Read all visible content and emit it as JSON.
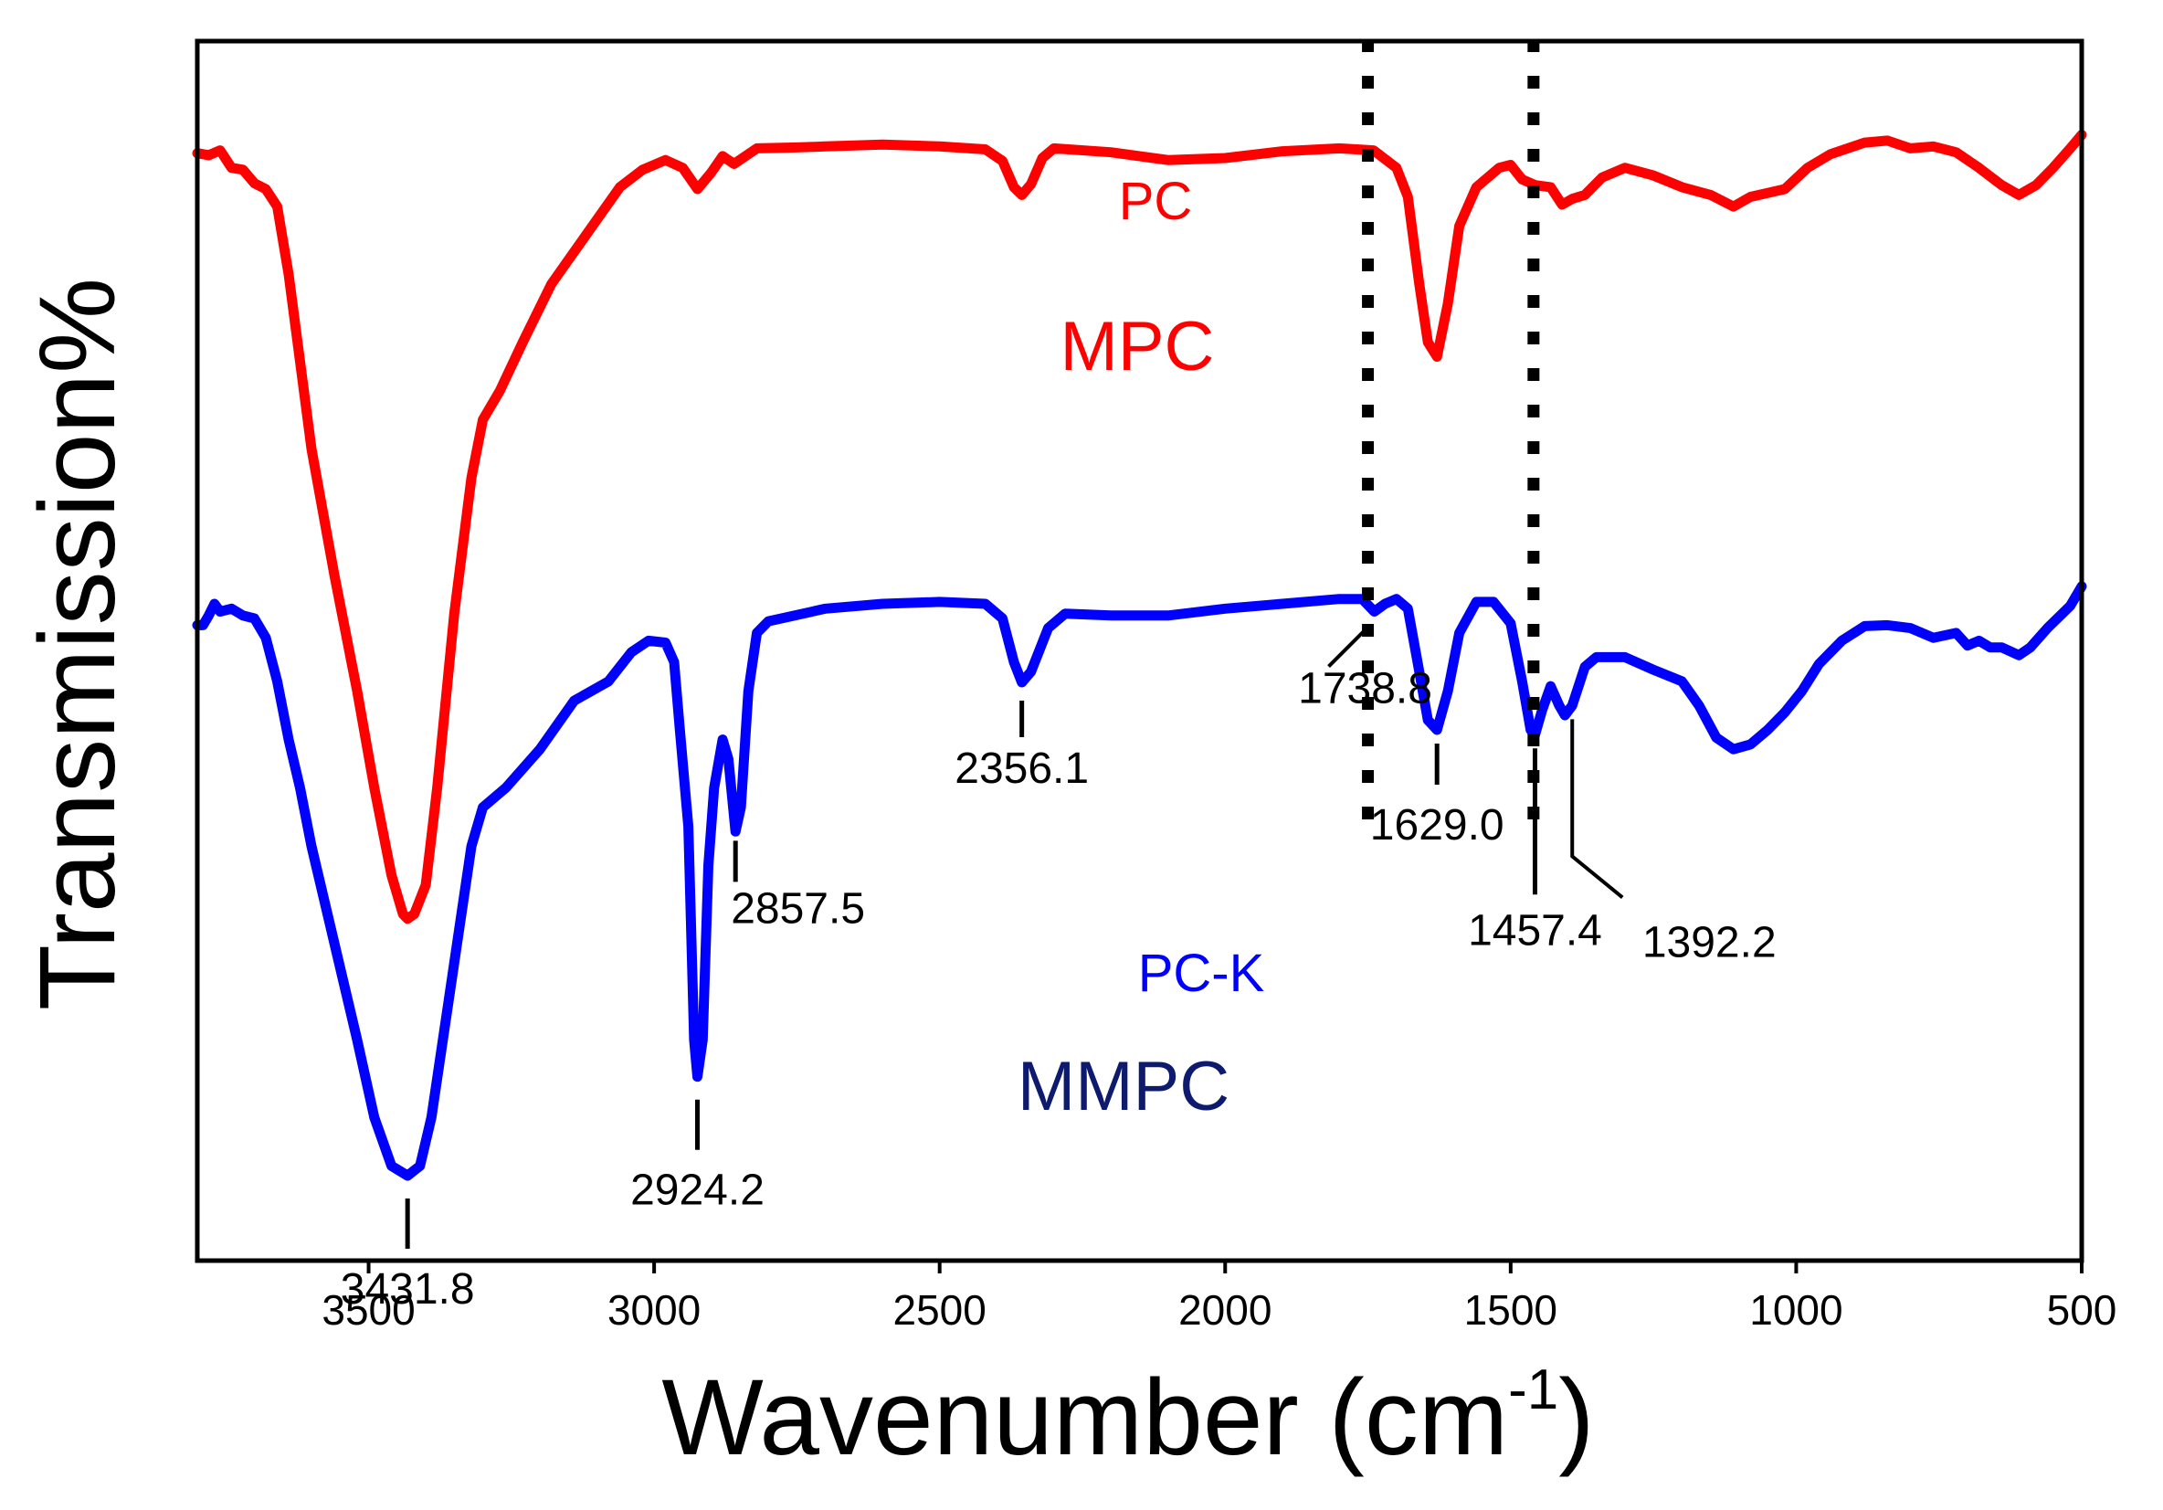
{
  "chart_data": {
    "type": "line",
    "title": "",
    "xlabel": "Wavenumber (cm",
    "xlabel_sup": "-1",
    "xlabel_close": ")",
    "ylabel": "Transmission%",
    "xlim": [
      3800,
      500
    ],
    "x_reversed": true,
    "yaxis_ticks": false,
    "x_ticks": [
      3500,
      3000,
      2500,
      2000,
      1500,
      1000,
      500
    ],
    "x_tick_labels": [
      "3500",
      "3000",
      "2500",
      "2000",
      "1500",
      "1000",
      "500"
    ],
    "series": [
      {
        "name": "MPC",
        "legend_labels": [
          "PC",
          "MPC"
        ],
        "legend_colors": [
          "#ff0000",
          "#ff0000"
        ],
        "color": "#ff0000",
        "points": [
          [
            3800,
            0.045
          ],
          [
            3780,
            0.047
          ],
          [
            3760,
            0.042
          ],
          [
            3740,
            0.06
          ],
          [
            3720,
            0.062
          ],
          [
            3700,
            0.076
          ],
          [
            3680,
            0.082
          ],
          [
            3660,
            0.1
          ],
          [
            3640,
            0.17
          ],
          [
            3620,
            0.26
          ],
          [
            3600,
            0.35
          ],
          [
            3560,
            0.48
          ],
          [
            3520,
            0.6
          ],
          [
            3490,
            0.7
          ],
          [
            3460,
            0.79
          ],
          [
            3440,
            0.83
          ],
          [
            3431.8,
            0.835
          ],
          [
            3420,
            0.83
          ],
          [
            3400,
            0.8
          ],
          [
            3380,
            0.7
          ],
          [
            3350,
            0.52
          ],
          [
            3320,
            0.38
          ],
          [
            3300,
            0.32
          ],
          [
            3270,
            0.29
          ],
          [
            3230,
            0.24
          ],
          [
            3180,
            0.18
          ],
          [
            3120,
            0.13
          ],
          [
            3060,
            0.08
          ],
          [
            3020,
            0.062
          ],
          [
            2980,
            0.052
          ],
          [
            2950,
            0.06
          ],
          [
            2924,
            0.082
          ],
          [
            2900,
            0.065
          ],
          [
            2880,
            0.048
          ],
          [
            2860,
            0.056
          ],
          [
            2840,
            0.048
          ],
          [
            2820,
            0.04
          ],
          [
            2750,
            0.039
          ],
          [
            2700,
            0.038
          ],
          [
            2600,
            0.036
          ],
          [
            2500,
            0.038
          ],
          [
            2420,
            0.041
          ],
          [
            2390,
            0.053
          ],
          [
            2370,
            0.08
          ],
          [
            2356,
            0.088
          ],
          [
            2340,
            0.077
          ],
          [
            2320,
            0.05
          ],
          [
            2300,
            0.04
          ],
          [
            2200,
            0.044
          ],
          [
            2100,
            0.052
          ],
          [
            2000,
            0.05
          ],
          [
            1900,
            0.043
          ],
          [
            1800,
            0.04
          ],
          [
            1740,
            0.042
          ],
          [
            1700,
            0.06
          ],
          [
            1680,
            0.09
          ],
          [
            1660,
            0.18
          ],
          [
            1645,
            0.24
          ],
          [
            1629,
            0.255
          ],
          [
            1610,
            0.2
          ],
          [
            1590,
            0.12
          ],
          [
            1560,
            0.08
          ],
          [
            1520,
            0.06
          ],
          [
            1500,
            0.057
          ],
          [
            1480,
            0.072
          ],
          [
            1457,
            0.078
          ],
          [
            1430,
            0.08
          ],
          [
            1410,
            0.098
          ],
          [
            1392,
            0.092
          ],
          [
            1370,
            0.088
          ],
          [
            1340,
            0.07
          ],
          [
            1300,
            0.06
          ],
          [
            1250,
            0.068
          ],
          [
            1200,
            0.08
          ],
          [
            1150,
            0.088
          ],
          [
            1110,
            0.1
          ],
          [
            1080,
            0.09
          ],
          [
            1020,
            0.082
          ],
          [
            980,
            0.06
          ],
          [
            940,
            0.046
          ],
          [
            880,
            0.034
          ],
          [
            840,
            0.032
          ],
          [
            800,
            0.04
          ],
          [
            760,
            0.038
          ],
          [
            720,
            0.044
          ],
          [
            680,
            0.06
          ],
          [
            640,
            0.078
          ],
          [
            610,
            0.088
          ],
          [
            580,
            0.078
          ],
          [
            550,
            0.06
          ],
          [
            520,
            0.04
          ],
          [
            500,
            0.026
          ]
        ]
      },
      {
        "name": "MMPC",
        "legend_labels": [
          "PC-K",
          "MMPC"
        ],
        "legend_colors": [
          "#0000ff",
          "#0d1a6e"
        ],
        "color": "#0000ff",
        "points": [
          [
            3800,
            0.532
          ],
          [
            3790,
            0.532
          ],
          [
            3780,
            0.522
          ],
          [
            3770,
            0.51
          ],
          [
            3760,
            0.518
          ],
          [
            3740,
            0.515
          ],
          [
            3720,
            0.522
          ],
          [
            3700,
            0.525
          ],
          [
            3680,
            0.545
          ],
          [
            3660,
            0.59
          ],
          [
            3640,
            0.65
          ],
          [
            3620,
            0.7
          ],
          [
            3600,
            0.76
          ],
          [
            3560,
            0.86
          ],
          [
            3520,
            0.96
          ],
          [
            3490,
            1.04
          ],
          [
            3460,
            1.09
          ],
          [
            3431.8,
            1.1
          ],
          [
            3410,
            1.09
          ],
          [
            3390,
            1.04
          ],
          [
            3360,
            0.92
          ],
          [
            3320,
            0.76
          ],
          [
            3300,
            0.72
          ],
          [
            3260,
            0.7
          ],
          [
            3200,
            0.66
          ],
          [
            3140,
            0.61
          ],
          [
            3080,
            0.59
          ],
          [
            3040,
            0.56
          ],
          [
            3010,
            0.548
          ],
          [
            2980,
            0.55
          ],
          [
            2965,
            0.57
          ],
          [
            2955,
            0.64
          ],
          [
            2940,
            0.74
          ],
          [
            2930,
            0.96
          ],
          [
            2924.2,
            0.998
          ],
          [
            2915,
            0.96
          ],
          [
            2905,
            0.78
          ],
          [
            2895,
            0.7
          ],
          [
            2880,
            0.65
          ],
          [
            2870,
            0.67
          ],
          [
            2857.5,
            0.745
          ],
          [
            2848,
            0.72
          ],
          [
            2835,
            0.6
          ],
          [
            2820,
            0.54
          ],
          [
            2800,
            0.528
          ],
          [
            2700,
            0.515
          ],
          [
            2600,
            0.51
          ],
          [
            2500,
            0.508
          ],
          [
            2420,
            0.51
          ],
          [
            2390,
            0.525
          ],
          [
            2370,
            0.57
          ],
          [
            2356.1,
            0.591
          ],
          [
            2340,
            0.58
          ],
          [
            2310,
            0.535
          ],
          [
            2280,
            0.52
          ],
          [
            2200,
            0.522
          ],
          [
            2100,
            0.522
          ],
          [
            2000,
            0.515
          ],
          [
            1900,
            0.51
          ],
          [
            1800,
            0.505
          ],
          [
            1760,
            0.505
          ],
          [
            1738.8,
            0.518
          ],
          [
            1720,
            0.51
          ],
          [
            1700,
            0.505
          ],
          [
            1680,
            0.515
          ],
          [
            1660,
            0.58
          ],
          [
            1645,
            0.63
          ],
          [
            1629,
            0.64
          ],
          [
            1610,
            0.6
          ],
          [
            1590,
            0.54
          ],
          [
            1560,
            0.508
          ],
          [
            1530,
            0.508
          ],
          [
            1500,
            0.53
          ],
          [
            1480,
            0.59
          ],
          [
            1465,
            0.64
          ],
          [
            1457.4,
            0.645
          ],
          [
            1445,
            0.62
          ],
          [
            1430,
            0.595
          ],
          [
            1415,
            0.615
          ],
          [
            1405,
            0.625
          ],
          [
            1392.2,
            0.615
          ],
          [
            1370,
            0.575
          ],
          [
            1350,
            0.565
          ],
          [
            1300,
            0.565
          ],
          [
            1250,
            0.578
          ],
          [
            1200,
            0.59
          ],
          [
            1170,
            0.615
          ],
          [
            1140,
            0.648
          ],
          [
            1110,
            0.66
          ],
          [
            1080,
            0.655
          ],
          [
            1050,
            0.64
          ],
          [
            1020,
            0.622
          ],
          [
            990,
            0.6
          ],
          [
            960,
            0.572
          ],
          [
            920,
            0.548
          ],
          [
            880,
            0.533
          ],
          [
            840,
            0.532
          ],
          [
            800,
            0.535
          ],
          [
            760,
            0.545
          ],
          [
            720,
            0.54
          ],
          [
            700,
            0.553
          ],
          [
            680,
            0.548
          ],
          [
            660,
            0.555
          ],
          [
            640,
            0.555
          ],
          [
            610,
            0.563
          ],
          [
            590,
            0.555
          ],
          [
            560,
            0.535
          ],
          [
            520,
            0.512
          ],
          [
            500,
            0.492
          ]
        ]
      }
    ],
    "reference_lines": [
      1750,
      1460
    ],
    "peak_annotations": [
      {
        "label": "3431.8",
        "x": 3431.8
      },
      {
        "label": "2924.2",
        "x": 2924.2
      },
      {
        "label": "2857.5",
        "x": 2857.5
      },
      {
        "label": "2356.1",
        "x": 2356.1
      },
      {
        "label": "1738.8",
        "x": 1738.8
      },
      {
        "label": "1629.0",
        "x": 1629.0
      },
      {
        "label": "1457.4",
        "x": 1457.4
      },
      {
        "label": "1392.2",
        "x": 1392.2
      }
    ]
  }
}
